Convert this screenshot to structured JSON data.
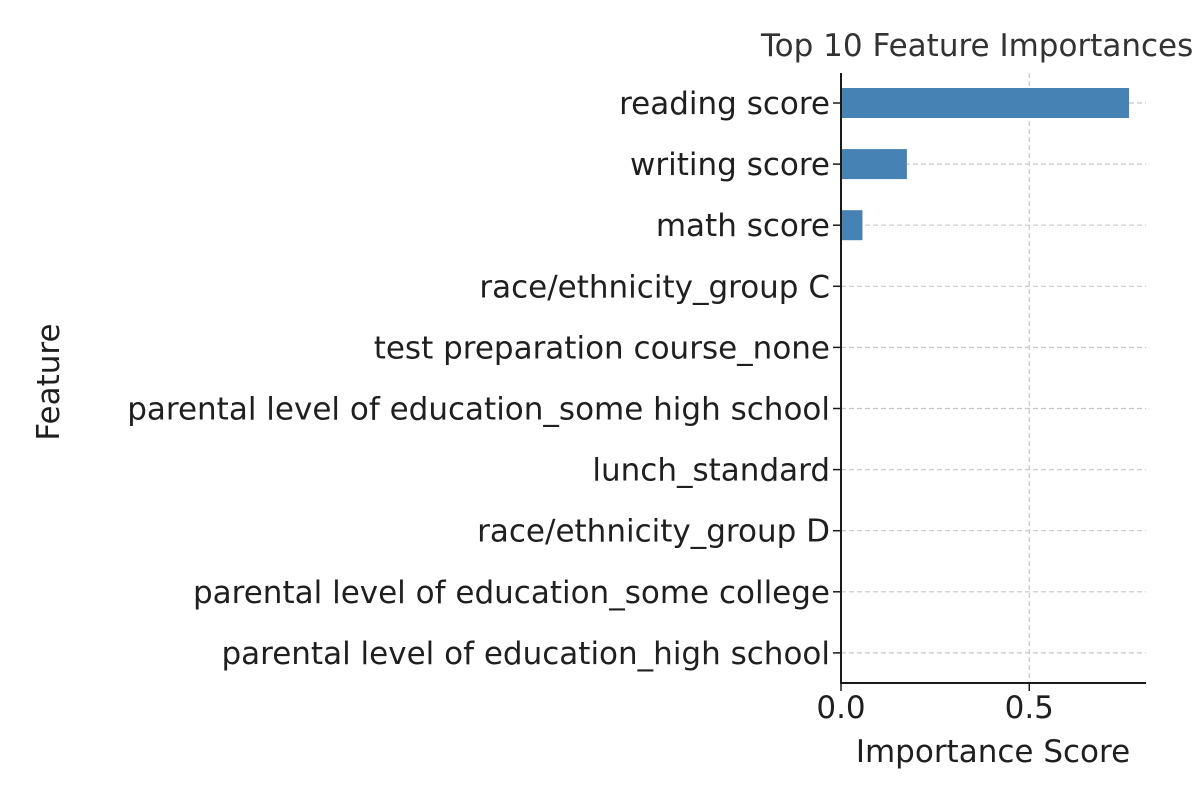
{
  "chart_data": {
    "type": "bar",
    "orientation": "horizontal",
    "title": "Top 10 Feature Importances",
    "xlabel": "Importance Score",
    "ylabel": "Feature",
    "categories": [
      "reading score",
      "writing score",
      "math score",
      "race/ethnicity_group C",
      "test preparation course_none",
      "parental level of education_some high school",
      "lunch_standard",
      "race/ethnicity_group D",
      "parental level of education_some college",
      "parental level of education_high school"
    ],
    "values": [
      0.765,
      0.175,
      0.057,
      0.001,
      0.001,
      0.001,
      0.0,
      0.0,
      0.0,
      0.0
    ],
    "xlim": [
      0,
      0.81
    ],
    "xticks": [
      0.0,
      0.5
    ],
    "xtick_labels": [
      "0.0",
      "0.5"
    ],
    "grid": true,
    "bar_color": "#4682b4",
    "grid_color": "#c8c8c8"
  }
}
